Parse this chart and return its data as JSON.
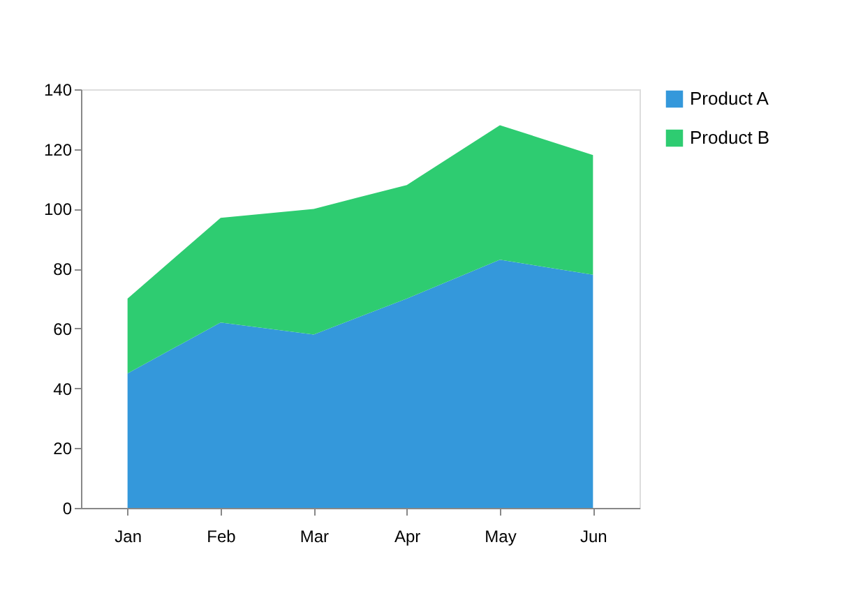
{
  "chart_data": {
    "type": "area",
    "stacked": true,
    "categories": [
      "Jan",
      "Feb",
      "Mar",
      "Apr",
      "May",
      "Jun"
    ],
    "series": [
      {
        "name": "Product A",
        "color": "#3498db",
        "values": [
          45,
          62,
          58,
          70,
          83,
          78
        ]
      },
      {
        "name": "Product B",
        "color": "#2ecc71",
        "values": [
          25,
          35,
          42,
          38,
          45,
          40
        ]
      }
    ],
    "ylim": [
      0,
      140
    ],
    "yticks": [
      0,
      20,
      40,
      60,
      80,
      100,
      120,
      140
    ],
    "grid": false,
    "legend": "top right"
  }
}
